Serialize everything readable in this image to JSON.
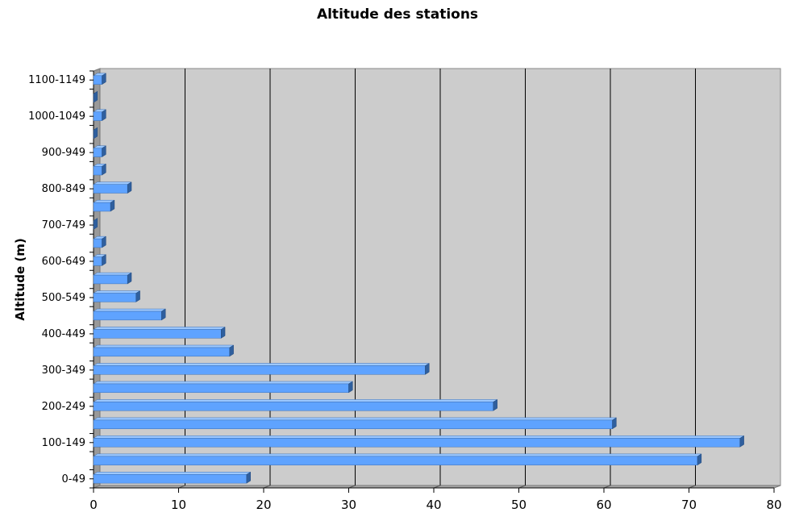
{
  "chart_data": {
    "type": "bar",
    "orientation": "horizontal",
    "title": "Altitude des stations",
    "ylabel": "Altitude (m)",
    "xlabel": "",
    "categories": [
      "0-49",
      "50-99",
      "100-149",
      "150-199",
      "200-249",
      "250-299",
      "300-349",
      "350-399",
      "400-449",
      "450-499",
      "500-549",
      "550-599",
      "600-649",
      "650-699",
      "700-749",
      "750-799",
      "800-849",
      "850-899",
      "900-949",
      "950-999",
      "1000-1049",
      "1050-1099",
      "1100-1149"
    ],
    "category_labels_shown": [
      "0-49",
      "100-149",
      "200-249",
      "300-349",
      "400-449",
      "500-549",
      "600-649",
      "700-749",
      "800-849",
      "900-949",
      "1000-1049",
      "1100-1149"
    ],
    "values": [
      18,
      71,
      76,
      61,
      47,
      30,
      39,
      16,
      15,
      8,
      5,
      4,
      1,
      1,
      0,
      2,
      4,
      1,
      1,
      0,
      1,
      0,
      1
    ],
    "xlim": [
      0,
      80
    ],
    "xticks": [
      0,
      10,
      20,
      30,
      40,
      50,
      60,
      70,
      80
    ],
    "grid": true,
    "bar_color": "#5fa3ff",
    "plot_background": "#cccccc"
  }
}
